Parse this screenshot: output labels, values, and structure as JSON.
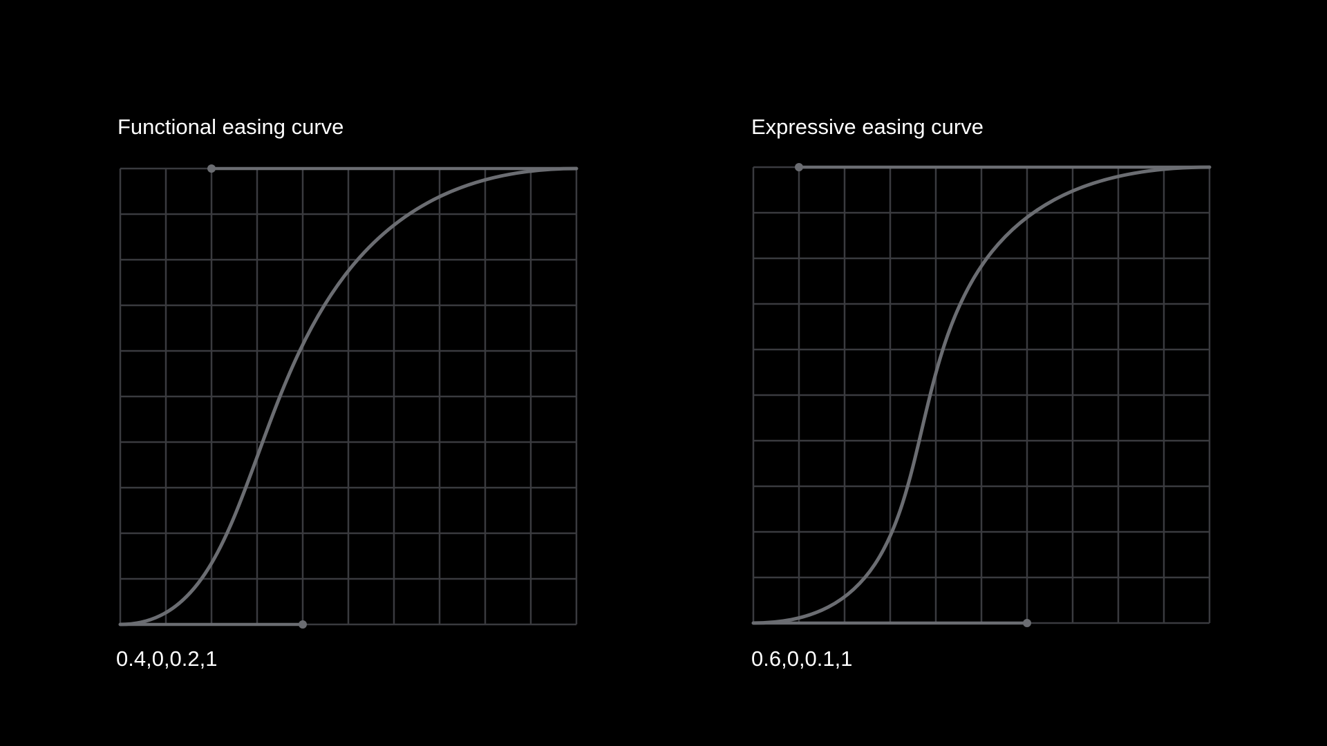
{
  "curves": [
    {
      "title": "Functional easing curve",
      "values_label": "0.4,0,0.2,1",
      "bezier": [
        0.4,
        0,
        0.2,
        1
      ]
    },
    {
      "title": "Expressive easing curve",
      "values_label": "0.6,0,0.1,1",
      "bezier": [
        0.6,
        0,
        0.1,
        1
      ]
    }
  ],
  "grid": {
    "divisions": 10
  },
  "colors": {
    "background": "#000000",
    "grid_line": "#3a3b3f",
    "curve": "#6b6d72",
    "handle": "#6b6d72",
    "text": "#ffffff"
  }
}
